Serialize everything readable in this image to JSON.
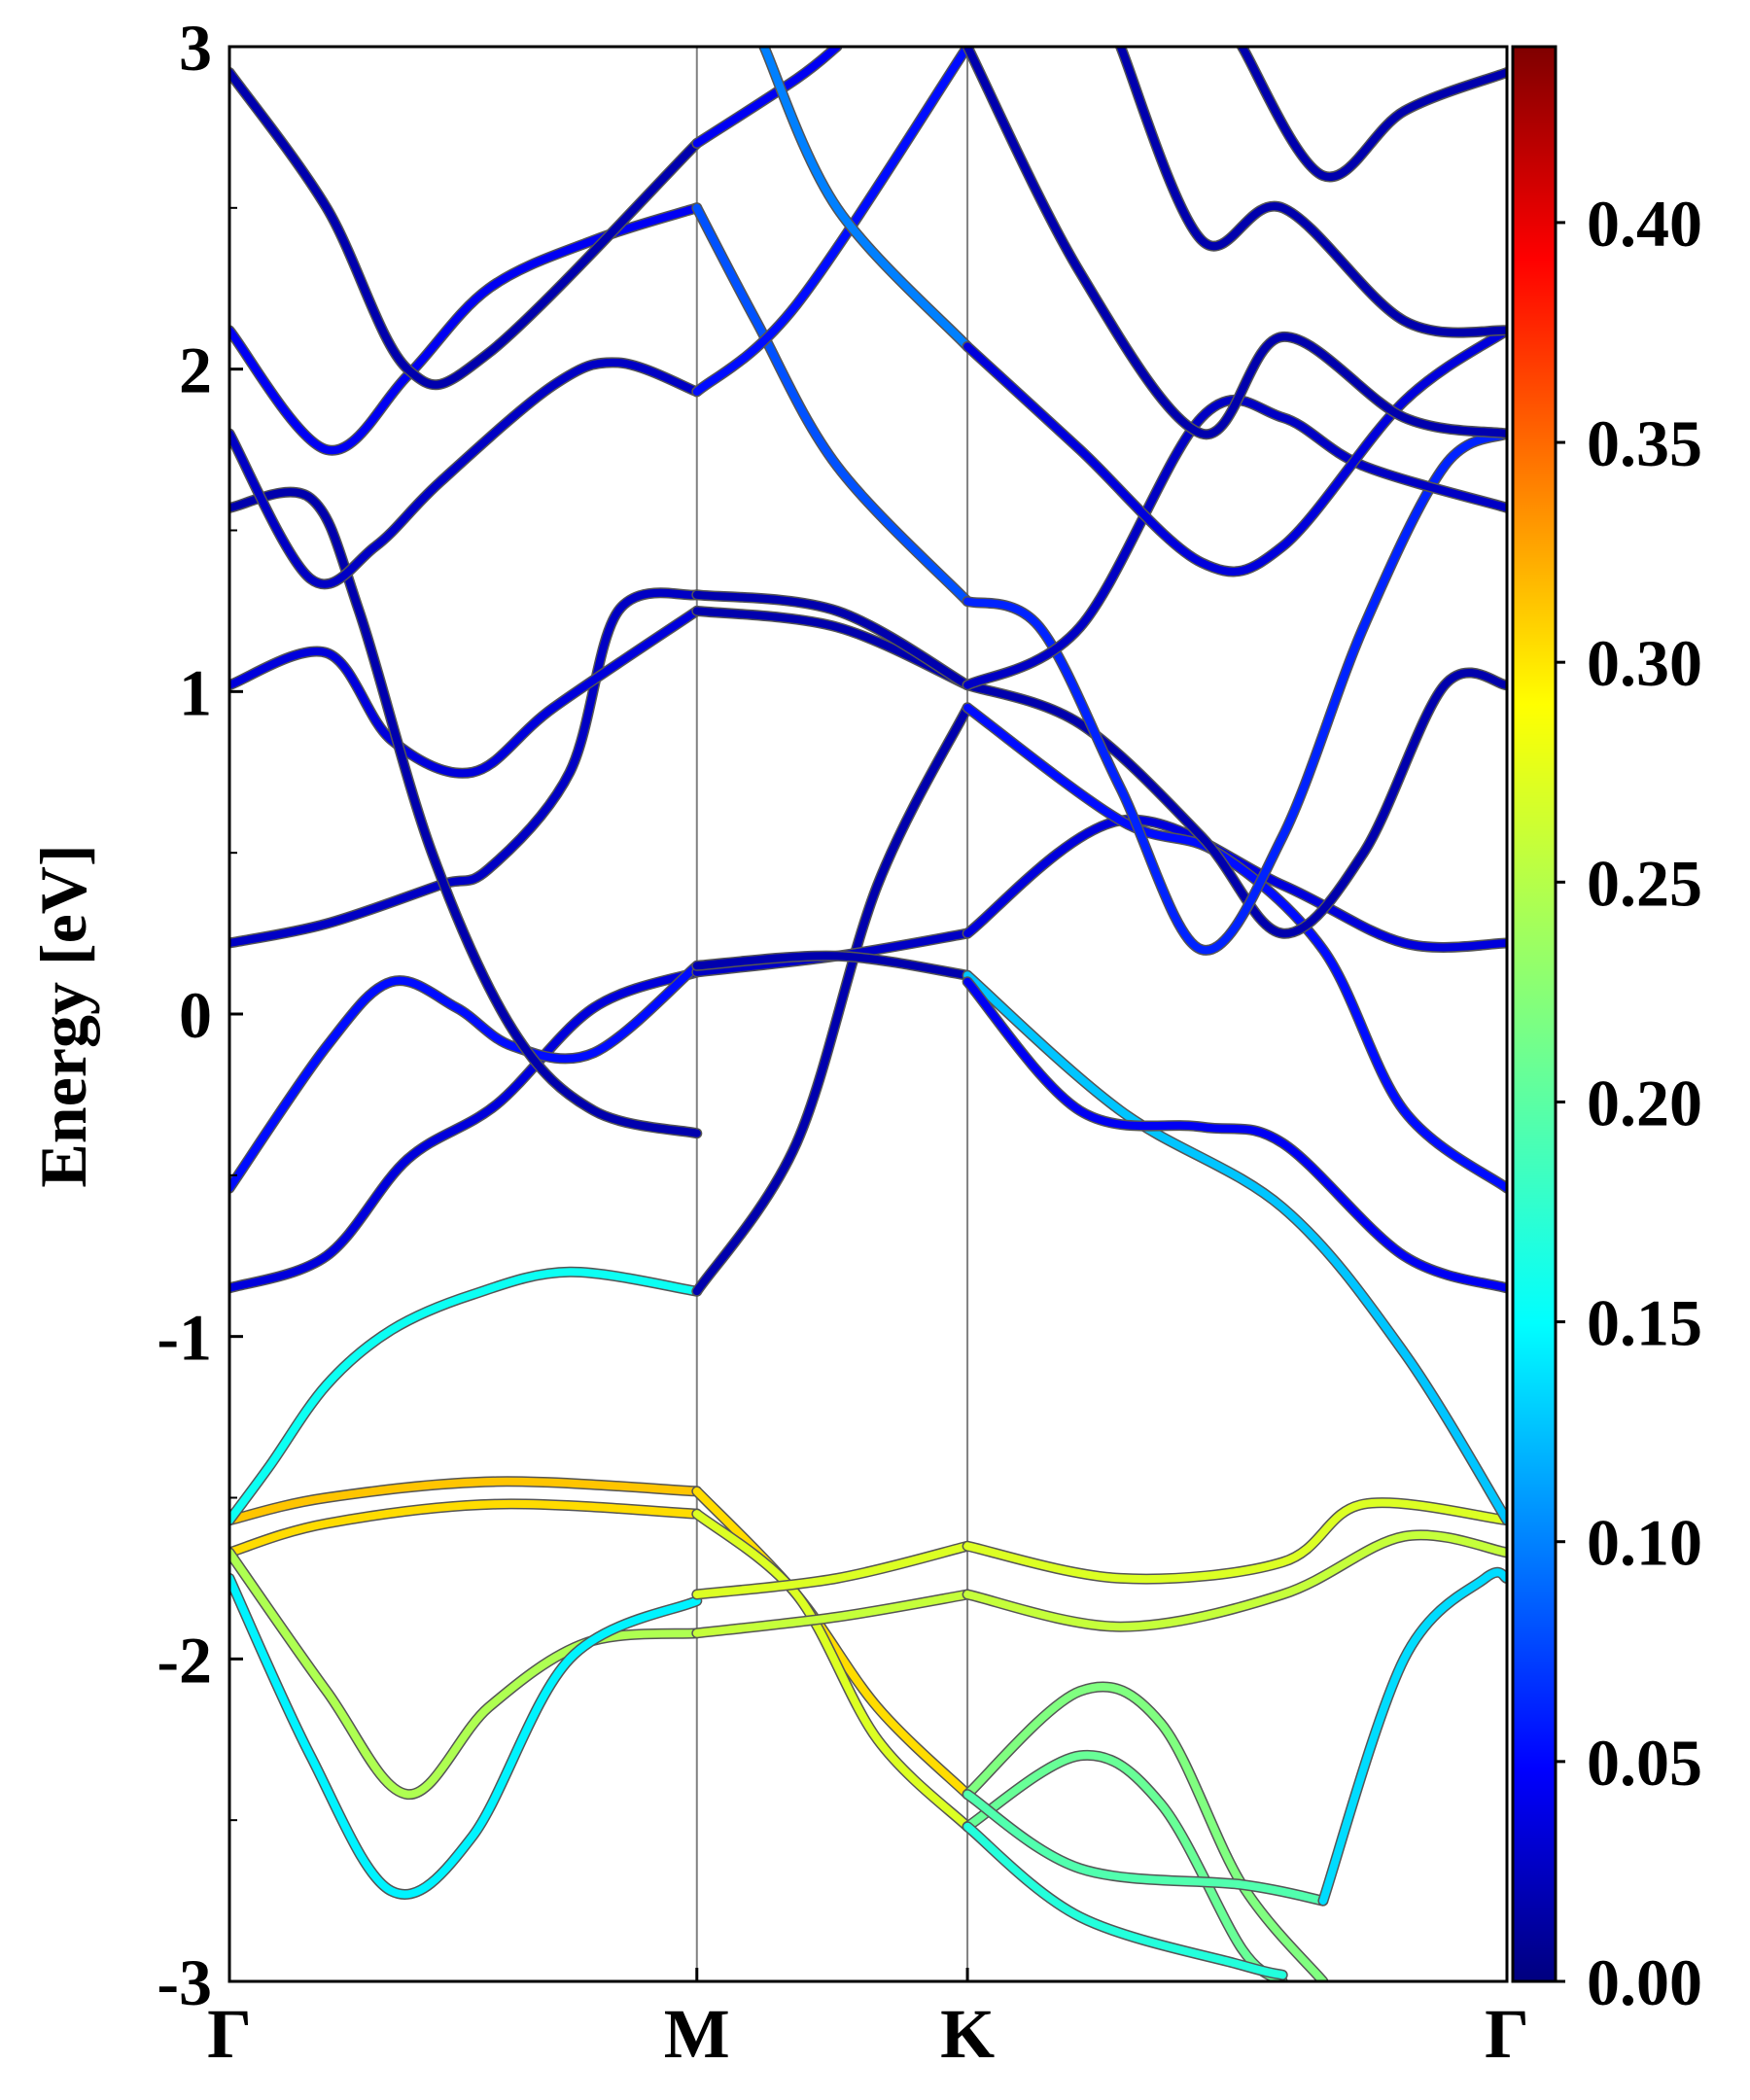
{
  "chart_data": {
    "type": "line",
    "ylabel": "Energy [eV]",
    "xlabel": "",
    "title": "",
    "ylim": [
      -3,
      3
    ],
    "y_ticks": [
      "3",
      "2",
      "1",
      "0",
      "-1",
      "-2",
      "-3"
    ],
    "y_tick_values": [
      3,
      2,
      1,
      0,
      -1,
      -2,
      -3
    ],
    "x_kpoints": [
      {
        "label": "Γ",
        "x": 0.0
      },
      {
        "label": "M",
        "x": 0.577
      },
      {
        "label": "K",
        "x": 0.911
      },
      {
        "label": "Γ",
        "x": 1.577
      }
    ],
    "colorbar": {
      "min": 0.0,
      "max": 0.44,
      "ticks": [
        "0.00",
        "0.05",
        "0.10",
        "0.15",
        "0.20",
        "0.25",
        "0.30",
        "0.35",
        "0.40"
      ],
      "tick_values": [
        0.0,
        0.05,
        0.1,
        0.15,
        0.2,
        0.25,
        0.3,
        0.35,
        0.4
      ],
      "colormap": "jet"
    },
    "bands": [
      {
        "path": "G-M",
        "weight": 0.3,
        "points": [
          [
            0,
            -1.57
          ],
          [
            0.12,
            -1.5
          ],
          [
            0.33,
            -1.45
          ],
          [
            0.577,
            -1.48
          ]
        ]
      },
      {
        "path": "G-M",
        "weight": 0.29,
        "points": [
          [
            0,
            -1.67
          ],
          [
            0.12,
            -1.58
          ],
          [
            0.33,
            -1.52
          ],
          [
            0.577,
            -1.55
          ]
        ]
      },
      {
        "path": "G-M",
        "weight": 0.17,
        "points": [
          [
            0,
            -1.57
          ],
          [
            0.05,
            -1.4
          ],
          [
            0.12,
            -1.15
          ],
          [
            0.2,
            -0.98
          ],
          [
            0.3,
            -0.87
          ],
          [
            0.42,
            -0.8
          ],
          [
            0.577,
            -0.86
          ]
        ]
      },
      {
        "path": "G-M",
        "weight": 0.24,
        "points": [
          [
            0,
            -1.67
          ],
          [
            0.12,
            -2.1
          ],
          [
            0.22,
            -2.42
          ],
          [
            0.32,
            -2.15
          ],
          [
            0.44,
            -1.95
          ],
          [
            0.577,
            -1.92
          ]
        ]
      },
      {
        "path": "G-M",
        "weight": 0.16,
        "points": [
          [
            0,
            -1.75
          ],
          [
            0.1,
            -2.3
          ],
          [
            0.2,
            -2.72
          ],
          [
            0.3,
            -2.55
          ],
          [
            0.42,
            -2.0
          ],
          [
            0.577,
            -1.82
          ]
        ]
      },
      {
        "path": "G-M",
        "weight": 0.04,
        "points": [
          [
            0,
            -0.85
          ],
          [
            0.12,
            -0.75
          ],
          [
            0.22,
            -0.45
          ],
          [
            0.33,
            -0.28
          ],
          [
            0.45,
            0.02
          ],
          [
            0.577,
            0.13
          ]
        ]
      },
      {
        "path": "G-M",
        "weight": 0.06,
        "points": [
          [
            0,
            -0.54
          ],
          [
            0.12,
            -0.1
          ],
          [
            0.2,
            0.1
          ],
          [
            0.28,
            0.02
          ],
          [
            0.35,
            -0.1
          ],
          [
            0.45,
            -0.12
          ],
          [
            0.577,
            0.15
          ]
        ]
      },
      {
        "path": "G-M",
        "weight": 0.03,
        "points": [
          [
            0,
            0.22
          ],
          [
            0.12,
            0.28
          ],
          [
            0.26,
            0.4
          ],
          [
            0.32,
            0.45
          ],
          [
            0.42,
            0.75
          ],
          [
            0.48,
            1.25
          ],
          [
            0.577,
            1.3
          ]
        ]
      },
      {
        "path": "G-M",
        "weight": 0.04,
        "points": [
          [
            0,
            1.02
          ],
          [
            0.12,
            1.12
          ],
          [
            0.2,
            0.85
          ],
          [
            0.3,
            0.75
          ],
          [
            0.4,
            0.95
          ],
          [
            0.577,
            1.25
          ]
        ]
      },
      {
        "path": "G-M",
        "weight": 0.02,
        "points": [
          [
            0,
            1.57
          ],
          [
            0.1,
            1.6
          ],
          [
            0.16,
            1.25
          ],
          [
            0.25,
            0.5
          ],
          [
            0.35,
            -0.05
          ],
          [
            0.45,
            -0.3
          ],
          [
            0.577,
            -0.37
          ]
        ]
      },
      {
        "path": "G-M",
        "weight": 0.03,
        "points": [
          [
            0,
            1.8
          ],
          [
            0.1,
            1.35
          ],
          [
            0.18,
            1.45
          ],
          [
            0.26,
            1.65
          ],
          [
            0.4,
            1.95
          ],
          [
            0.48,
            2.02
          ],
          [
            0.577,
            1.93
          ]
        ]
      },
      {
        "path": "G-M",
        "weight": 0.05,
        "points": [
          [
            0,
            2.12
          ],
          [
            0.12,
            1.75
          ],
          [
            0.22,
            1.98
          ],
          [
            0.32,
            2.25
          ],
          [
            0.45,
            2.4
          ],
          [
            0.577,
            2.5
          ]
        ]
      },
      {
        "path": "G-M",
        "weight": 0.02,
        "points": [
          [
            0,
            2.92
          ],
          [
            0.12,
            2.5
          ],
          [
            0.22,
            2.0
          ],
          [
            0.32,
            2.05
          ],
          [
            0.577,
            2.7
          ]
        ]
      },
      {
        "path": "M-K",
        "weight": 0.29,
        "points": [
          [
            0.577,
            -1.48
          ],
          [
            0.7,
            -1.8
          ],
          [
            0.8,
            -2.15
          ],
          [
            0.911,
            -2.42
          ]
        ]
      },
      {
        "path": "M-K",
        "weight": 0.26,
        "points": [
          [
            0.577,
            -1.55
          ],
          [
            0.7,
            -1.8
          ],
          [
            0.8,
            -2.25
          ],
          [
            0.911,
            -2.52
          ]
        ]
      },
      {
        "path": "M-K",
        "weight": 0.26,
        "points": [
          [
            0.577,
            -1.8
          ],
          [
            0.75,
            -1.75
          ],
          [
            0.911,
            -1.65
          ]
        ]
      },
      {
        "path": "M-K",
        "weight": 0.25,
        "points": [
          [
            0.577,
            -1.92
          ],
          [
            0.75,
            -1.87
          ],
          [
            0.911,
            -1.8
          ]
        ]
      },
      {
        "path": "M-K",
        "weight": 0.02,
        "points": [
          [
            0.577,
            -0.86
          ],
          [
            0.7,
            -0.4
          ],
          [
            0.8,
            0.4
          ],
          [
            0.911,
            0.95
          ]
        ]
      },
      {
        "path": "M-K",
        "weight": 0.03,
        "points": [
          [
            0.577,
            0.13
          ],
          [
            0.75,
            0.18
          ],
          [
            0.911,
            0.25
          ]
        ]
      },
      {
        "path": "M-K",
        "weight": 0.02,
        "points": [
          [
            0.577,
            0.15
          ],
          [
            0.75,
            0.18
          ],
          [
            0.911,
            0.12
          ]
        ]
      },
      {
        "path": "M-K",
        "weight": 0.02,
        "points": [
          [
            0.577,
            1.25
          ],
          [
            0.75,
            1.2
          ],
          [
            0.911,
            1.02
          ]
        ]
      },
      {
        "path": "M-K",
        "weight": 0.02,
        "points": [
          [
            0.577,
            1.3
          ],
          [
            0.75,
            1.25
          ],
          [
            0.911,
            1.02
          ]
        ]
      },
      {
        "path": "M-K",
        "weight": 0.09,
        "points": [
          [
            0.577,
            2.5
          ],
          [
            0.65,
            2.15
          ],
          [
            0.75,
            1.7
          ],
          [
            0.911,
            1.28
          ]
        ]
      },
      {
        "path": "M-K",
        "weight": 0.06,
        "points": [
          [
            0.577,
            1.93
          ],
          [
            0.7,
            2.2
          ],
          [
            0.911,
            3.0
          ]
        ]
      },
      {
        "path": "M-K",
        "weight": 0.05,
        "points": [
          [
            0.577,
            2.7
          ],
          [
            0.7,
            2.9
          ],
          [
            0.75,
            3.0
          ]
        ]
      },
      {
        "path": "M-K",
        "weight": 0.11,
        "points": [
          [
            0.66,
            3.0
          ],
          [
            0.75,
            2.5
          ],
          [
            0.911,
            2.07
          ]
        ]
      },
      {
        "path": "K-G",
        "weight": 0.26,
        "points": [
          [
            0.911,
            -1.65
          ],
          [
            1.1,
            -1.75
          ],
          [
            1.3,
            -1.7
          ],
          [
            1.4,
            -1.52
          ],
          [
            1.577,
            -1.57
          ]
        ]
      },
      {
        "path": "K-G",
        "weight": 0.25,
        "points": [
          [
            0.911,
            -1.8
          ],
          [
            1.1,
            -1.9
          ],
          [
            1.3,
            -1.8
          ],
          [
            1.45,
            -1.62
          ],
          [
            1.577,
            -1.67
          ]
        ]
      },
      {
        "path": "K-G",
        "weight": 0.22,
        "points": [
          [
            0.911,
            -2.42
          ],
          [
            1.05,
            -2.1
          ],
          [
            1.15,
            -2.2
          ],
          [
            1.25,
            -2.7
          ],
          [
            1.35,
            -3.0
          ]
        ]
      },
      {
        "path": "K-G",
        "weight": 0.21,
        "points": [
          [
            0.911,
            -2.52
          ],
          [
            1.05,
            -2.3
          ],
          [
            1.15,
            -2.45
          ],
          [
            1.25,
            -2.9
          ],
          [
            1.3,
            -3.0
          ]
        ]
      },
      {
        "path": "K-G",
        "weight": 0.2,
        "points": [
          [
            0.911,
            -2.42
          ],
          [
            1.05,
            -2.65
          ],
          [
            1.25,
            -2.7
          ],
          [
            1.35,
            -2.75
          ]
        ]
      },
      {
        "path": "K-G",
        "weight": 0.18,
        "points": [
          [
            0.911,
            -2.52
          ],
          [
            1.05,
            -2.8
          ],
          [
            1.25,
            -2.95
          ],
          [
            1.3,
            -2.98
          ]
        ]
      },
      {
        "path": "K-G",
        "weight": 0.15,
        "points": [
          [
            1.35,
            -2.75
          ],
          [
            1.45,
            -2.0
          ],
          [
            1.55,
            -1.75
          ],
          [
            1.577,
            -1.75
          ]
        ]
      },
      {
        "path": "K-G",
        "weight": 0.14,
        "points": [
          [
            0.911,
            0.12
          ],
          [
            1.1,
            -0.3
          ],
          [
            1.3,
            -0.6
          ],
          [
            1.45,
            -1.05
          ],
          [
            1.577,
            -1.57
          ]
        ]
      },
      {
        "path": "K-G",
        "weight": 0.04,
        "points": [
          [
            0.911,
            0.25
          ],
          [
            1.1,
            0.6
          ],
          [
            1.3,
            0.4
          ],
          [
            1.45,
            0.22
          ],
          [
            1.577,
            0.22
          ]
        ]
      },
      {
        "path": "K-G",
        "weight": 0.05,
        "points": [
          [
            0.911,
            0.1
          ],
          [
            1.05,
            -0.3
          ],
          [
            1.2,
            -0.35
          ],
          [
            1.3,
            -0.4
          ],
          [
            1.45,
            -0.75
          ],
          [
            1.577,
            -0.85
          ]
        ]
      },
      {
        "path": "K-G",
        "weight": 0.06,
        "points": [
          [
            0.911,
            0.95
          ],
          [
            1.1,
            0.6
          ],
          [
            1.22,
            0.5
          ],
          [
            1.35,
            0.2
          ],
          [
            1.45,
            -0.3
          ],
          [
            1.577,
            -0.54
          ]
        ]
      },
      {
        "path": "K-G",
        "weight": 0.02,
        "points": [
          [
            0.911,
            1.02
          ],
          [
            1.05,
            0.9
          ],
          [
            1.2,
            0.55
          ],
          [
            1.3,
            0.25
          ],
          [
            1.4,
            0.5
          ],
          [
            1.5,
            1.02
          ],
          [
            1.577,
            1.02
          ]
        ]
      },
      {
        "path": "K-G",
        "weight": 0.07,
        "points": [
          [
            0.911,
            1.28
          ],
          [
            1.0,
            1.2
          ],
          [
            1.1,
            0.7
          ],
          [
            1.2,
            0.2
          ],
          [
            1.3,
            0.55
          ],
          [
            1.4,
            1.2
          ],
          [
            1.5,
            1.7
          ],
          [
            1.577,
            1.8
          ]
        ]
      },
      {
        "path": "K-G",
        "weight": 0.03,
        "points": [
          [
            0.911,
            1.02
          ],
          [
            1.05,
            1.2
          ],
          [
            1.2,
            1.85
          ],
          [
            1.3,
            1.85
          ],
          [
            1.4,
            1.7
          ],
          [
            1.577,
            1.57
          ]
        ]
      },
      {
        "path": "K-G",
        "weight": 0.04,
        "points": [
          [
            0.911,
            2.07
          ],
          [
            1.05,
            1.75
          ],
          [
            1.2,
            1.4
          ],
          [
            1.3,
            1.45
          ],
          [
            1.45,
            1.9
          ],
          [
            1.577,
            2.12
          ]
        ]
      },
      {
        "path": "K-G",
        "weight": 0.02,
        "points": [
          [
            0.911,
            3.0
          ],
          [
            1.05,
            2.3
          ],
          [
            1.2,
            1.8
          ],
          [
            1.3,
            2.1
          ],
          [
            1.45,
            1.85
          ],
          [
            1.577,
            1.8
          ]
        ]
      },
      {
        "path": "K-G",
        "weight": 0.02,
        "points": [
          [
            1.1,
            3.0
          ],
          [
            1.2,
            2.4
          ],
          [
            1.3,
            2.5
          ],
          [
            1.45,
            2.15
          ],
          [
            1.577,
            2.12
          ]
        ]
      },
      {
        "path": "K-G",
        "weight": 0.02,
        "points": [
          [
            1.25,
            3.0
          ],
          [
            1.35,
            2.6
          ],
          [
            1.45,
            2.8
          ],
          [
            1.577,
            2.92
          ]
        ]
      }
    ]
  }
}
